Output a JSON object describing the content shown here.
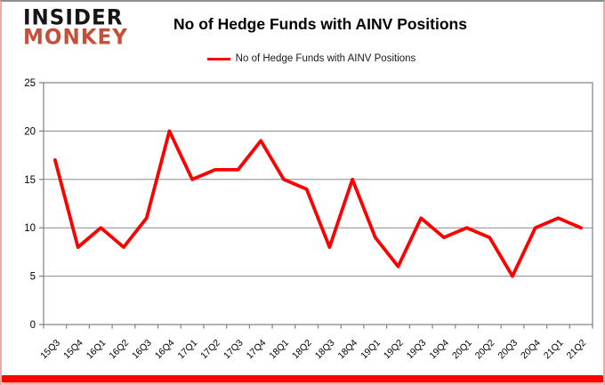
{
  "logo": {
    "line1": "INSIDER",
    "line2": "MONKEY"
  },
  "header": {
    "title": "No of Hedge Funds with AINV Positions"
  },
  "legend": {
    "label": "No of Hedge Funds with AINV Positions"
  },
  "colors": {
    "line": "#fe0000",
    "grid": "#898989",
    "axis": "#808080",
    "tick_label": "#000000",
    "logo_accent": "#c4503b",
    "bottom_bar": "#fe0000"
  },
  "chart_data": {
    "type": "line",
    "title": "No of Hedge Funds with AINV Positions",
    "categories": [
      "15Q3",
      "15Q4",
      "16Q1",
      "16Q2",
      "16Q3",
      "16Q4",
      "17Q1",
      "17Q2",
      "17Q3",
      "17Q4",
      "18Q1",
      "18Q2",
      "18Q3",
      "18Q4",
      "19Q1",
      "19Q2",
      "19Q3",
      "19Q4",
      "20Q1",
      "20Q2",
      "20Q3",
      "20Q4",
      "21Q1",
      "21Q2"
    ],
    "series": [
      {
        "name": "No of Hedge Funds with AINV Positions",
        "color": "#fe0000",
        "values": [
          17,
          8,
          10,
          8,
          11,
          20,
          15,
          16,
          16,
          19,
          15,
          14,
          8,
          15,
          9,
          6,
          11,
          9,
          10,
          9,
          5,
          10,
          11,
          10
        ]
      }
    ],
    "xlabel": "",
    "ylabel": "",
    "ylim": [
      0,
      25
    ],
    "yticks": [
      0,
      5,
      10,
      15,
      20,
      25
    ],
    "grid": true,
    "legend_position": "top"
  }
}
